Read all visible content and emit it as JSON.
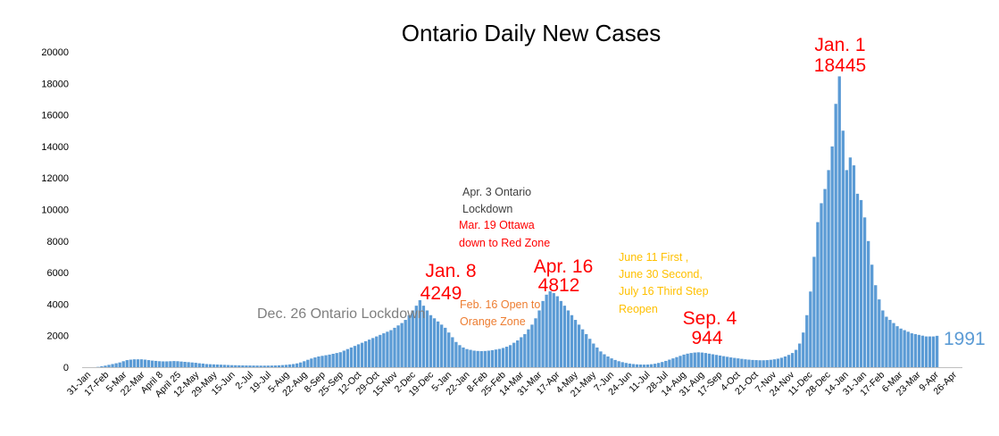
{
  "chart_data": {
    "type": "bar",
    "title": "Ontario Daily New Cases",
    "xlabel": "",
    "ylabel": "",
    "ylim": [
      0,
      20000
    ],
    "y_ticks": [
      "0",
      "2000",
      "4000",
      "6000",
      "8000",
      "10000",
      "12000",
      "14000",
      "16000",
      "18000",
      "20000"
    ],
    "x_tick_labels": [
      "31-Jan",
      "17-Feb",
      "5-Mar",
      "22-Mar",
      "April 8",
      "April 25",
      "12-May",
      "29-May",
      "15-Jun",
      "2-Jul",
      "19-Jul",
      "5-Aug",
      "22-Aug",
      "8-Sep",
      "25-Sep",
      "12-Oct",
      "29-Oct",
      "15-Nov",
      "2-Dec",
      "19-Dec",
      "5-Jan",
      "22-Jan",
      "8-Feb",
      "25-Feb",
      "14-Mar",
      "31-Mar",
      "17-Apr",
      "4-May",
      "21-May",
      "7-Jun",
      "24-Jun",
      "11-Jul",
      "28-Jul",
      "14-Aug",
      "31-Aug",
      "17-Sep",
      "4-Oct",
      "21-Oct",
      "7-Nov",
      "24-Nov",
      "11-Dec",
      "28-Dec",
      "14-Jan",
      "31-Jan",
      "17-Feb",
      "6-Mar",
      "23-Mar",
      "9-Apr",
      "26-Apr"
    ],
    "grid": false,
    "legend": "none",
    "bar_color": "#5b9bd5",
    "series": [
      {
        "values": [
          0,
          0,
          0,
          0,
          20,
          60,
          100,
          150,
          200,
          250,
          300,
          380,
          450,
          480,
          500,
          500,
          500,
          480,
          450,
          420,
          400,
          380,
          370,
          370,
          380,
          390,
          380,
          360,
          340,
          320,
          300,
          280,
          250,
          230,
          200,
          190,
          180,
          170,
          160,
          150,
          140,
          130,
          125,
          120,
          115,
          110,
          108,
          105,
          103,
          100,
          100,
          102,
          105,
          110,
          120,
          135,
          150,
          175,
          200,
          240,
          300,
          380,
          470,
          550,
          620,
          680,
          720,
          760,
          800,
          850,
          900,
          950,
          1050,
          1150,
          1250,
          1350,
          1450,
          1550,
          1650,
          1750,
          1850,
          1950,
          2050,
          2150,
          2250,
          2350,
          2500,
          2650,
          2800,
          3000,
          3300,
          3600,
          3900,
          4249,
          3900,
          3600,
          3300,
          3100,
          2900,
          2700,
          2500,
          2200,
          1900,
          1600,
          1400,
          1250,
          1150,
          1100,
          1050,
          1030,
          1020,
          1030,
          1050,
          1080,
          1120,
          1160,
          1220,
          1300,
          1400,
          1550,
          1700,
          1900,
          2100,
          2400,
          2700,
          3100,
          3600,
          4200,
          4600,
          4812,
          4700,
          4500,
          4200,
          3900,
          3600,
          3300,
          3000,
          2700,
          2400,
          2100,
          1800,
          1500,
          1250,
          1000,
          820,
          680,
          560,
          460,
          380,
          320,
          270,
          230,
          200,
          180,
          170,
          165,
          170,
          190,
          220,
          270,
          330,
          400,
          480,
          560,
          640,
          720,
          800,
          860,
          900,
          930,
          944,
          930,
          900,
          860,
          820,
          780,
          740,
          700,
          660,
          620,
          590,
          560,
          530,
          500,
          480,
          460,
          450,
          440,
          440,
          450,
          470,
          500,
          540,
          600,
          680,
          780,
          900,
          1100,
          1500,
          2200,
          3300,
          4800,
          7000,
          9200,
          10400,
          11300,
          12500,
          14000,
          16700,
          18445,
          15000,
          12500,
          13300,
          12800,
          11000,
          10600,
          9500,
          8000,
          6500,
          5200,
          4300,
          3600,
          3200,
          3000,
          2800,
          2600,
          2450,
          2350,
          2250,
          2150,
          2100,
          2050,
          2000,
          1950,
          1950,
          1950,
          1991
        ],
        "color": "#5b9bd5"
      }
    ],
    "annotations": [
      {
        "text_lines": [
          "Jan. 1",
          "18445"
        ],
        "color": "#ff0000"
      },
      {
        "text_lines": [
          "Jan. 8",
          "4249"
        ],
        "color": "#ff0000"
      },
      {
        "text_lines": [
          "Apr. 16",
          "4812"
        ],
        "color": "#ff0000"
      },
      {
        "text_lines": [
          "Sep. 4",
          "944"
        ],
        "color": "#ff0000"
      },
      {
        "text_lines": [
          "Dec. 26 Ontario Lockdown"
        ],
        "color": "#7f7f7f"
      },
      {
        "text_lines": [
          "Apr. 3 Ontario",
          "Lockdown"
        ],
        "color": "#404040"
      },
      {
        "text_lines": [
          "Mar. 19 Ottawa",
          "down to Red Zone"
        ],
        "color": "#ff0000"
      },
      {
        "text_lines": [
          "Feb. 16 Open to",
          "Orange Zone"
        ],
        "color": "#ed7d31"
      },
      {
        "text_lines": [
          "June 11 First ,",
          "June 30 Second,",
          "July 16 Third Step",
          "Reopen"
        ],
        "color": "#ffc000"
      },
      {
        "text_lines": [
          "1991"
        ],
        "color": "#5b9bd5"
      }
    ]
  }
}
